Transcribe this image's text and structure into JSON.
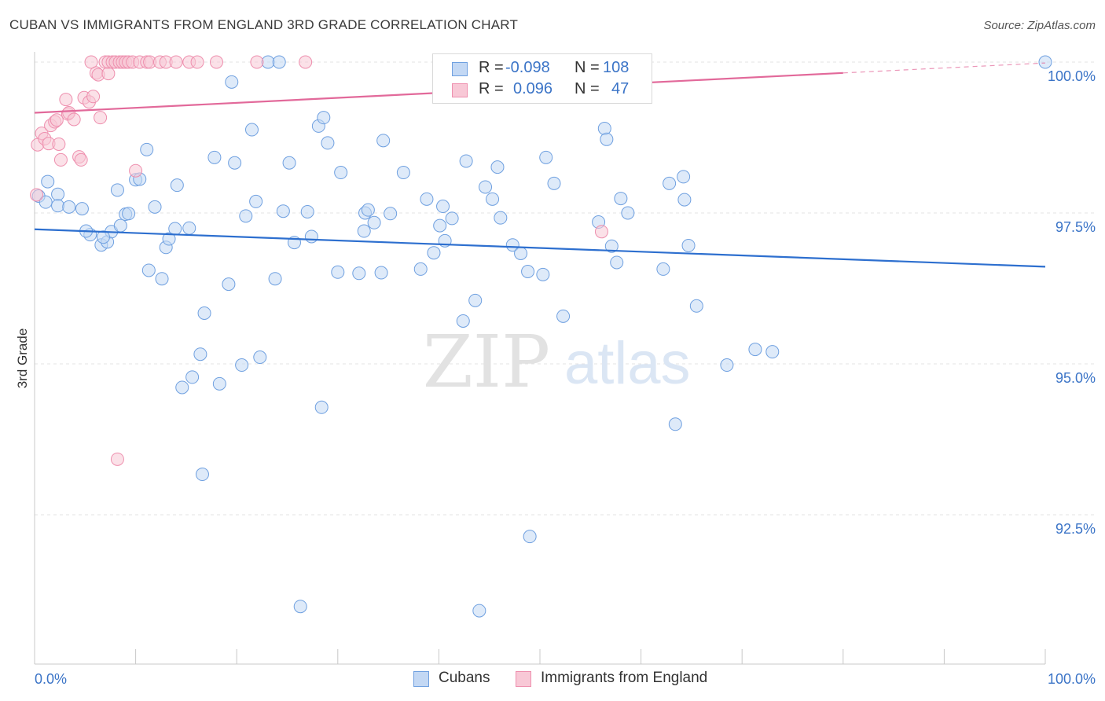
{
  "title": "CUBAN VS IMMIGRANTS FROM ENGLAND 3RD GRADE CORRELATION CHART",
  "source": "Source: ZipAtlas.com",
  "watermark": {
    "zip": "ZIP",
    "atlas": "atlas"
  },
  "legend": {
    "r_label": "R =",
    "n_label": "N =",
    "rows": [
      {
        "r": "-0.098",
        "n": "108",
        "color": "#6fa0e0",
        "fill": "#c3d8f4"
      },
      {
        "r": "0.096",
        "n": "47",
        "color": "#ee8fae",
        "fill": "#f8c8d6"
      }
    ]
  },
  "bottom_legend": [
    "Cubans",
    "Immigrants from England"
  ],
  "chart_data": {
    "type": "scatter",
    "title": "CUBAN VS IMMIGRANTS FROM ENGLAND 3RD GRADE CORRELATION CHART",
    "xlabel": "",
    "ylabel": "3rd Grade",
    "xlim": [
      0,
      100
    ],
    "ylim": [
      90.0,
      100.2
    ],
    "x_tick_labels": [
      "0.0%",
      "100.0%"
    ],
    "y_ticks": [
      92.5,
      95.0,
      97.5,
      100.0
    ],
    "y_tick_labels": [
      "92.5%",
      "95.0%",
      "97.5%",
      "100.0%"
    ],
    "grid": "horizontal dashed",
    "legend_position": "top-center",
    "series": [
      {
        "name": "Cubans",
        "color": "#6fa0e0",
        "fill": "#c3d8f4",
        "trend": {
          "x": [
            0,
            100
          ],
          "y": [
            97.23,
            96.61
          ]
        },
        "points": [
          [
            0.4,
            97.78
          ],
          [
            1.1,
            97.68
          ],
          [
            2.3,
            97.81
          ],
          [
            2.3,
            97.62
          ],
          [
            3.4,
            97.6
          ],
          [
            4.7,
            97.57
          ],
          [
            5.5,
            97.14
          ],
          [
            6.6,
            96.97
          ],
          [
            7.2,
            97.02
          ],
          [
            7.6,
            97.19
          ],
          [
            8.2,
            97.88
          ],
          [
            8.5,
            97.29
          ],
          [
            9.0,
            97.48
          ],
          [
            10.0,
            98.05
          ],
          [
            10.4,
            98.06
          ],
          [
            11.1,
            98.55
          ],
          [
            11.3,
            96.55
          ],
          [
            11.9,
            97.6
          ],
          [
            12.6,
            96.41
          ],
          [
            13.0,
            96.93
          ],
          [
            13.3,
            97.07
          ],
          [
            13.9,
            97.24
          ],
          [
            14.1,
            97.96
          ],
          [
            14.6,
            94.61
          ],
          [
            15.3,
            97.25
          ],
          [
            15.6,
            94.78
          ],
          [
            16.4,
            95.16
          ],
          [
            16.6,
            93.17
          ],
          [
            16.8,
            95.84
          ],
          [
            17.8,
            98.42
          ],
          [
            18.3,
            94.67
          ],
          [
            19.2,
            96.32
          ],
          [
            19.5,
            99.67
          ],
          [
            19.8,
            98.33
          ],
          [
            20.5,
            94.98
          ],
          [
            20.9,
            97.45
          ],
          [
            21.5,
            98.88
          ],
          [
            21.9,
            97.69
          ],
          [
            22.3,
            95.11
          ],
          [
            23.1,
            100.0
          ],
          [
            23.8,
            96.41
          ],
          [
            24.2,
            100.0
          ],
          [
            24.6,
            97.53
          ],
          [
            25.2,
            98.33
          ],
          [
            25.7,
            97.01
          ],
          [
            27.0,
            97.52
          ],
          [
            27.4,
            97.11
          ],
          [
            28.1,
            98.94
          ],
          [
            28.4,
            94.28
          ],
          [
            28.6,
            99.08
          ],
          [
            29.0,
            98.66
          ],
          [
            30.0,
            96.52
          ],
          [
            30.3,
            98.17
          ],
          [
            32.1,
            96.5
          ],
          [
            32.6,
            97.2
          ],
          [
            32.7,
            97.5
          ],
          [
            33.0,
            97.55
          ],
          [
            33.6,
            97.34
          ],
          [
            34.3,
            96.51
          ],
          [
            34.5,
            98.7
          ],
          [
            35.2,
            97.49
          ],
          [
            36.5,
            98.17
          ],
          [
            38.2,
            96.57
          ],
          [
            38.8,
            97.73
          ],
          [
            39.5,
            96.84
          ],
          [
            40.1,
            97.29
          ],
          [
            40.4,
            97.61
          ],
          [
            40.6,
            97.04
          ],
          [
            41.3,
            97.41
          ],
          [
            42.4,
            95.71
          ],
          [
            42.7,
            98.36
          ],
          [
            43.6,
            96.05
          ],
          [
            44.6,
            97.93
          ],
          [
            45.3,
            97.73
          ],
          [
            45.8,
            98.26
          ],
          [
            46.1,
            97.42
          ],
          [
            47.3,
            96.97
          ],
          [
            48.1,
            96.83
          ],
          [
            48.8,
            96.53
          ],
          [
            50.3,
            96.48
          ],
          [
            52.3,
            95.79
          ],
          [
            55.8,
            97.35
          ],
          [
            56.4,
            98.9
          ],
          [
            56.6,
            98.72
          ],
          [
            57.1,
            96.95
          ],
          [
            57.6,
            96.68
          ],
          [
            58.0,
            97.74
          ],
          [
            58.7,
            97.5
          ],
          [
            62.2,
            96.57
          ],
          [
            62.8,
            97.99
          ],
          [
            63.4,
            94.0
          ],
          [
            64.2,
            98.1
          ],
          [
            64.3,
            97.72
          ],
          [
            64.7,
            96.96
          ],
          [
            65.5,
            95.96
          ],
          [
            68.5,
            94.98
          ],
          [
            71.3,
            95.24
          ],
          [
            73.0,
            95.2
          ],
          [
            100.0,
            100.0
          ],
          [
            26.3,
            90.98
          ],
          [
            44.0,
            90.91
          ],
          [
            49.0,
            92.14
          ],
          [
            50.6,
            98.42
          ],
          [
            51.4,
            97.99
          ],
          [
            1.3,
            98.02
          ],
          [
            5.1,
            97.2
          ],
          [
            6.8,
            97.1
          ],
          [
            9.3,
            97.49
          ]
        ]
      },
      {
        "name": "Immigrants from England",
        "color": "#ee8fae",
        "fill": "#f8c8d6",
        "trend": {
          "x": [
            0,
            80
          ],
          "y": [
            99.16,
            99.82
          ]
        },
        "points": [
          [
            0.2,
            97.8
          ],
          [
            0.3,
            98.63
          ],
          [
            0.7,
            98.82
          ],
          [
            1.0,
            98.73
          ],
          [
            1.4,
            98.65
          ],
          [
            1.6,
            98.95
          ],
          [
            2.0,
            99.01
          ],
          [
            2.2,
            99.04
          ],
          [
            2.4,
            98.64
          ],
          [
            2.6,
            98.38
          ],
          [
            3.1,
            99.38
          ],
          [
            3.3,
            99.14
          ],
          [
            3.4,
            99.16
          ],
          [
            3.9,
            99.05
          ],
          [
            4.4,
            98.43
          ],
          [
            4.6,
            98.38
          ],
          [
            4.9,
            99.41
          ],
          [
            5.4,
            99.34
          ],
          [
            5.6,
            100.0
          ],
          [
            5.8,
            99.43
          ],
          [
            6.1,
            99.82
          ],
          [
            6.3,
            99.79
          ],
          [
            6.5,
            99.08
          ],
          [
            7.0,
            100.0
          ],
          [
            7.3,
            99.81
          ],
          [
            7.3,
            100.0
          ],
          [
            7.7,
            100.0
          ],
          [
            8.0,
            100.0
          ],
          [
            8.2,
            93.42
          ],
          [
            8.4,
            100.0
          ],
          [
            8.7,
            100.0
          ],
          [
            9.0,
            100.0
          ],
          [
            9.3,
            100.0
          ],
          [
            9.7,
            100.0
          ],
          [
            10.0,
            98.2
          ],
          [
            10.4,
            100.0
          ],
          [
            11.1,
            100.0
          ],
          [
            11.4,
            100.0
          ],
          [
            12.4,
            100.0
          ],
          [
            13.0,
            100.0
          ],
          [
            14.0,
            100.0
          ],
          [
            15.3,
            100.0
          ],
          [
            16.1,
            100.0
          ],
          [
            18.0,
            100.0
          ],
          [
            22.0,
            100.0
          ],
          [
            26.8,
            100.0
          ],
          [
            56.1,
            97.19
          ]
        ]
      }
    ]
  }
}
